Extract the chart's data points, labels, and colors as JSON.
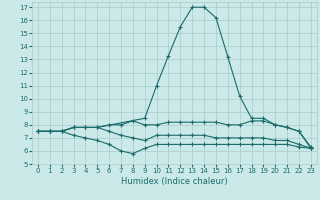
{
  "xlabel": "Humidex (Indice chaleur)",
  "bg_color": "#cce9e9",
  "grid_color": "#aacccc",
  "line_color": "#1a6b6b",
  "xlim": [
    -0.5,
    23.5
  ],
  "ylim": [
    5,
    17.4
  ],
  "xticks": [
    0,
    1,
    2,
    3,
    4,
    5,
    6,
    7,
    8,
    9,
    10,
    11,
    12,
    13,
    14,
    15,
    16,
    17,
    18,
    19,
    20,
    21,
    22,
    23
  ],
  "yticks": [
    5,
    6,
    7,
    8,
    9,
    10,
    11,
    12,
    13,
    14,
    15,
    16,
    17
  ],
  "lines": [
    {
      "x": [
        0,
        1,
        2,
        3,
        4,
        5,
        9,
        10,
        11,
        12,
        13,
        14,
        15,
        16,
        17,
        18,
        19,
        20,
        21,
        22,
        23
      ],
      "y": [
        7.5,
        7.5,
        7.5,
        7.8,
        7.8,
        7.8,
        8.5,
        11.0,
        13.3,
        15.5,
        17.0,
        17.0,
        16.2,
        13.2,
        10.2,
        8.5,
        8.5,
        8.0,
        7.8,
        7.5,
        6.2
      ]
    },
    {
      "x": [
        0,
        1,
        2,
        3,
        4,
        5,
        6,
        7,
        8,
        9,
        10,
        11,
        12,
        13,
        14,
        15,
        16,
        17,
        18,
        19,
        20,
        21,
        22,
        23
      ],
      "y": [
        7.5,
        7.5,
        7.5,
        7.8,
        7.8,
        7.8,
        8.0,
        8.0,
        8.3,
        8.0,
        8.0,
        8.2,
        8.2,
        8.2,
        8.2,
        8.2,
        8.0,
        8.0,
        8.3,
        8.3,
        8.0,
        7.8,
        7.5,
        6.3
      ]
    },
    {
      "x": [
        0,
        1,
        2,
        3,
        4,
        5,
        6,
        7,
        8,
        9,
        10,
        11,
        12,
        13,
        14,
        15,
        16,
        17,
        18,
        19,
        20,
        21,
        22,
        23
      ],
      "y": [
        7.5,
        7.5,
        7.5,
        7.8,
        7.8,
        7.8,
        7.5,
        7.2,
        7.0,
        6.8,
        7.2,
        7.2,
        7.2,
        7.2,
        7.2,
        7.0,
        7.0,
        7.0,
        7.0,
        7.0,
        6.8,
        6.8,
        6.5,
        6.2
      ]
    },
    {
      "x": [
        0,
        1,
        2,
        3,
        4,
        5,
        6,
        7,
        8,
        9,
        10,
        11,
        12,
        13,
        14,
        15,
        16,
        17,
        18,
        19,
        20,
        21,
        22,
        23
      ],
      "y": [
        7.5,
        7.5,
        7.5,
        7.2,
        7.0,
        6.8,
        6.5,
        6.0,
        5.8,
        6.2,
        6.5,
        6.5,
        6.5,
        6.5,
        6.5,
        6.5,
        6.5,
        6.5,
        6.5,
        6.5,
        6.5,
        6.5,
        6.3,
        6.2
      ]
    }
  ]
}
